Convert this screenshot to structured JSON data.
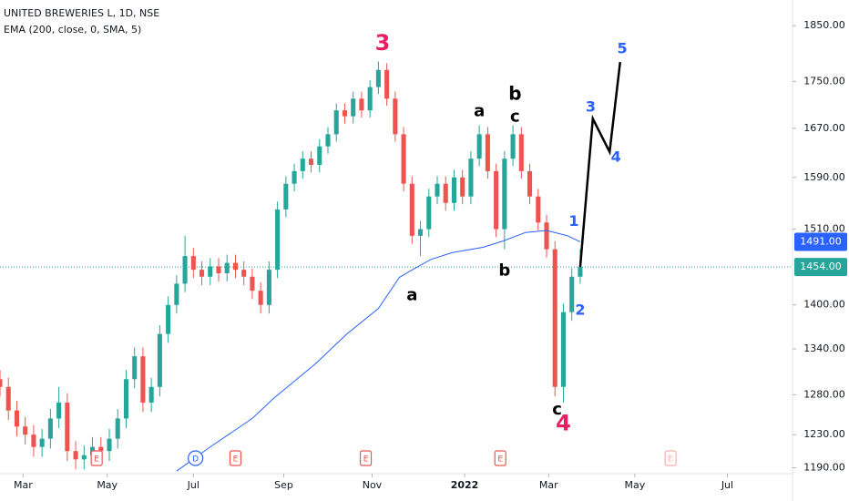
{
  "chart_data": {
    "type": "candlestick",
    "title": "UNITED BREWERIES L, 1D, NSE",
    "subtitle": "EMA (200, close, 0, SMA, 5)",
    "log_scale": true,
    "up_color": "#26a69a",
    "down_color": "#ef5350",
    "x": [
      0,
      4,
      8,
      12,
      16,
      20,
      24,
      28,
      32,
      36,
      40,
      44,
      48,
      52,
      56,
      60,
      64,
      68,
      72,
      76,
      80,
      84,
      88,
      92,
      96,
      100,
      104,
      108,
      112,
      116,
      120,
      124,
      128,
      132,
      136,
      140,
      144,
      148,
      152,
      156,
      160,
      164,
      168,
      172,
      176,
      180,
      184,
      188,
      192,
      196,
      200,
      204,
      208,
      212,
      216,
      220,
      224,
      228,
      232,
      236,
      240,
      244,
      248,
      252,
      256,
      260,
      264,
      268,
      272,
      276
    ],
    "open": [
      1300,
      1290,
      1260,
      1240,
      1230,
      1215,
      1225,
      1250,
      1270,
      1210,
      1200,
      1205,
      1215,
      1210,
      1225,
      1250,
      1300,
      1330,
      1270,
      1290,
      1360,
      1400,
      1430,
      1470,
      1450,
      1440,
      1455,
      1445,
      1460,
      1450,
      1440,
      1420,
      1400,
      1450,
      1540,
      1580,
      1600,
      1620,
      1610,
      1640,
      1660,
      1700,
      1690,
      1720,
      1700,
      1740,
      1770,
      1720,
      1660,
      1580,
      1500,
      1510,
      1560,
      1580,
      1550,
      1590,
      1560,
      1620,
      1660,
      1600,
      1510,
      1620,
      1660,
      1600,
      1560,
      1520,
      1480,
      1290,
      1390,
      1440
    ],
    "high": [
      1312,
      1302,
      1272,
      1252,
      1242,
      1237,
      1262,
      1290,
      1282,
      1222,
      1217,
      1227,
      1227,
      1237,
      1262,
      1312,
      1342,
      1342,
      1302,
      1372,
      1412,
      1442,
      1500,
      1482,
      1462,
      1467,
      1467,
      1472,
      1472,
      1462,
      1452,
      1432,
      1462,
      1552,
      1592,
      1612,
      1632,
      1632,
      1652,
      1672,
      1712,
      1712,
      1732,
      1732,
      1752,
      1785,
      1782,
      1732,
      1672,
      1592,
      1522,
      1572,
      1592,
      1592,
      1602,
      1602,
      1632,
      1675,
      1672,
      1612,
      1632,
      1675,
      1672,
      1612,
      1572,
      1532,
      1492,
      1402,
      1452,
      1480
    ],
    "low": [
      1278,
      1248,
      1228,
      1218,
      1203,
      1203,
      1213,
      1238,
      1198,
      1188,
      1188,
      1193,
      1198,
      1198,
      1213,
      1238,
      1288,
      1258,
      1258,
      1278,
      1348,
      1388,
      1418,
      1438,
      1428,
      1428,
      1433,
      1433,
      1438,
      1428,
      1408,
      1388,
      1388,
      1438,
      1528,
      1568,
      1588,
      1598,
      1598,
      1628,
      1648,
      1678,
      1678,
      1688,
      1688,
      1728,
      1708,
      1648,
      1568,
      1488,
      1470,
      1498,
      1548,
      1538,
      1538,
      1548,
      1548,
      1608,
      1588,
      1498,
      1480,
      1608,
      1588,
      1548,
      1508,
      1468,
      1278,
      1270,
      1378,
      1430
    ],
    "close": [
      1290,
      1260,
      1240,
      1230,
      1215,
      1225,
      1250,
      1270,
      1210,
      1200,
      1205,
      1215,
      1210,
      1225,
      1250,
      1300,
      1330,
      1270,
      1290,
      1360,
      1400,
      1430,
      1470,
      1450,
      1440,
      1455,
      1445,
      1460,
      1450,
      1440,
      1420,
      1400,
      1450,
      1540,
      1580,
      1600,
      1620,
      1610,
      1640,
      1660,
      1700,
      1690,
      1720,
      1700,
      1740,
      1770,
      1720,
      1660,
      1580,
      1500,
      1510,
      1560,
      1580,
      1550,
      1590,
      1560,
      1620,
      1660,
      1600,
      1510,
      1620,
      1660,
      1600,
      1560,
      1520,
      1480,
      1290,
      1390,
      1440,
      1454
    ],
    "ema": {
      "color": "#2962ff",
      "x": [
        84,
        100,
        120,
        130,
        150,
        165,
        180,
        190,
        195,
        205,
        215,
        230,
        240,
        250,
        260,
        270,
        276
      ],
      "values": [
        1186,
        1215,
        1250,
        1275,
        1320,
        1360,
        1395,
        1439,
        1448,
        1465,
        1475,
        1483,
        1493,
        1505,
        1508,
        1500,
        1491
      ]
    },
    "projection": {
      "color": "#000000",
      "x": [
        276,
        282,
        290,
        295
      ],
      "values": [
        1454,
        1686,
        1631,
        1784
      ]
    },
    "last_price": {
      "value": 1454,
      "label": "1454.00",
      "color": "#26a69a"
    },
    "ema_last": {
      "value": 1491,
      "label": "1491.00",
      "color": "#2962ff"
    },
    "annotations": [
      {
        "text": "3",
        "x": 182,
        "y": 1817,
        "color": "#e91e63",
        "size": 24
      },
      {
        "text": "a",
        "x": 228,
        "y": 1698,
        "color": "#000000",
        "size": 18
      },
      {
        "text": "b",
        "x": 245,
        "y": 1727,
        "color": "#000000",
        "size": 20
      },
      {
        "text": "c",
        "x": 245,
        "y": 1689,
        "color": "#000000",
        "size": 18
      },
      {
        "text": "b",
        "x": 240,
        "y": 1448,
        "color": "#000000",
        "size": 18
      },
      {
        "text": "a",
        "x": 196,
        "y": 1413,
        "color": "#000000",
        "size": 18
      },
      {
        "text": "c",
        "x": 265,
        "y": 1261,
        "color": "#000000",
        "size": 18
      },
      {
        "text": "4",
        "x": 268,
        "y": 1243,
        "color": "#e91e63",
        "size": 24
      },
      {
        "text": "1",
        "x": 273,
        "y": 1521,
        "color": "#2962ff",
        "size": 16
      },
      {
        "text": "2",
        "x": 276,
        "y": 1392,
        "color": "#2962ff",
        "size": 16
      },
      {
        "text": "3",
        "x": 281,
        "y": 1705,
        "color": "#2962ff",
        "size": 16
      },
      {
        "text": "4",
        "x": 293,
        "y": 1622,
        "color": "#2962ff",
        "size": 16
      },
      {
        "text": "5",
        "x": 296,
        "y": 1807,
        "color": "#2962ff",
        "size": 16
      }
    ],
    "events": [
      {
        "label": "E",
        "x": 46
      },
      {
        "label": "D",
        "x": 93
      },
      {
        "label": "E",
        "x": 112
      },
      {
        "label": "E",
        "x": 174
      },
      {
        "label": "E",
        "x": 238
      },
      {
        "label": "E",
        "x": 319
      }
    ],
    "xlim": [
      0,
      377
    ],
    "xticks": [
      {
        "value": 11,
        "label": "Mar"
      },
      {
        "value": 51,
        "label": "May"
      },
      {
        "value": 92,
        "label": "Jul"
      },
      {
        "value": 135,
        "label": "Sep"
      },
      {
        "value": 177,
        "label": "Nov"
      },
      {
        "value": 221,
        "label": "2022"
      },
      {
        "value": 261,
        "label": "Mar"
      },
      {
        "value": 302,
        "label": "May"
      },
      {
        "value": 346,
        "label": "Jul"
      }
    ],
    "ylim": [
      1183,
      1898
    ],
    "yticks": [
      {
        "value": 1190,
        "label": "1190.00"
      },
      {
        "value": 1230,
        "label": "1230.00"
      },
      {
        "value": 1280,
        "label": "1280.00"
      },
      {
        "value": 1340,
        "label": "1340.00"
      },
      {
        "value": 1400,
        "label": "1400.00"
      },
      {
        "value": 1510,
        "label": "1510.00"
      },
      {
        "value": 1590,
        "label": "1590.00"
      },
      {
        "value": 1670,
        "label": "1670.00"
      },
      {
        "value": 1750,
        "label": "1750.00"
      },
      {
        "value": 1850,
        "label": "1850.00"
      }
    ]
  }
}
